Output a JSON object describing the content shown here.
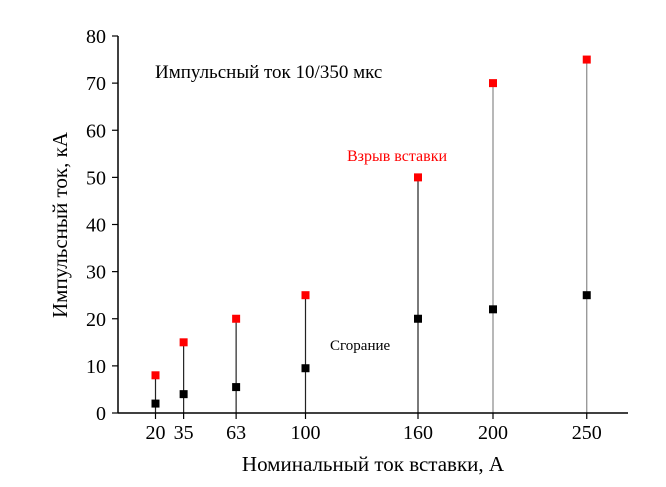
{
  "chart_data": {
    "type": "scatter",
    "title": "",
    "xlabel": "Номинальный ток вставки,  А",
    "ylabel": "Импульсный ток,  кА",
    "xlim": [
      0,
      272
    ],
    "ylim": [
      0,
      80
    ],
    "x_ticks": [
      20,
      35,
      63,
      100,
      160,
      200,
      250
    ],
    "y_ticks": [
      0,
      10,
      20,
      30,
      40,
      50,
      60,
      70,
      80
    ],
    "grid": false,
    "annotations": {
      "header": "Импульсный ток 10/350 мкс",
      "explosion_label": "Взрыв вставки",
      "burning_label": "Сгорание"
    },
    "series": [
      {
        "key": "burning",
        "color": "#000000",
        "x": [
          20,
          35,
          63,
          100,
          160,
          200,
          250
        ],
        "y": [
          2,
          4,
          5.5,
          9.5,
          20,
          22,
          25
        ]
      },
      {
        "key": "explosion",
        "color": "#ff0000",
        "x": [
          20,
          35,
          63,
          100,
          160,
          200,
          250
        ],
        "y": [
          8,
          15,
          20,
          25,
          50,
          70,
          75
        ]
      }
    ]
  }
}
